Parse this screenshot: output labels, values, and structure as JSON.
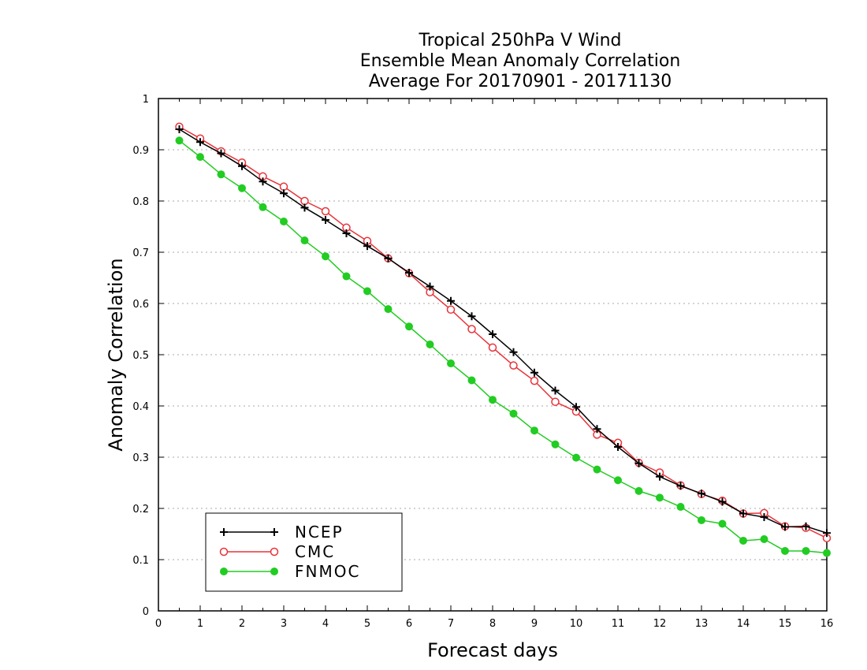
{
  "chart_data": {
    "type": "line",
    "title_lines": [
      "Tropical 250hPa V Wind",
      "Ensemble Mean Anomaly Correlation",
      "Average For 20170901 - 20171130"
    ],
    "xlabel": "Forecast days",
    "ylabel": "Anomaly Correlation",
    "xlim": [
      0,
      16
    ],
    "ylim": [
      0,
      1
    ],
    "x_ticks": [
      "0",
      "1",
      "2",
      "3",
      "4",
      "5",
      "6",
      "7",
      "8",
      "9",
      "10",
      "11",
      "12",
      "13",
      "14",
      "15",
      "16"
    ],
    "y_ticks": [
      "0",
      "0.1",
      "0.2",
      "0.3",
      "0.4",
      "0.5",
      "0.6",
      "0.7",
      "0.8",
      "0.9",
      "1"
    ],
    "grid": "horizontal dotted",
    "legend_position": "bottom-left",
    "x": [
      0.5,
      1,
      1.5,
      2,
      2.5,
      3,
      3.5,
      4,
      4.5,
      5,
      5.5,
      6,
      6.5,
      7,
      7.5,
      8,
      8.5,
      9,
      9.5,
      10,
      10.5,
      11,
      11.5,
      12,
      12.5,
      13,
      13.5,
      14,
      14.5,
      15,
      15.5,
      16
    ],
    "series": [
      {
        "name": "NCEP",
        "color": "#000000",
        "marker": "plus",
        "values": [
          0.94,
          0.915,
          0.893,
          0.868,
          0.838,
          0.815,
          0.787,
          0.763,
          0.737,
          0.712,
          0.688,
          0.66,
          0.633,
          0.605,
          0.575,
          0.54,
          0.505,
          0.465,
          0.43,
          0.398,
          0.355,
          0.32,
          0.288,
          0.262,
          0.244,
          0.229,
          0.213,
          0.19,
          0.183,
          0.164,
          0.165,
          0.152
        ]
      },
      {
        "name": "CMC",
        "color": "#e8333a",
        "marker": "open-circle",
        "values": [
          0.945,
          0.922,
          0.897,
          0.875,
          0.848,
          0.828,
          0.8,
          0.78,
          0.748,
          0.722,
          0.688,
          0.659,
          0.622,
          0.588,
          0.55,
          0.514,
          0.479,
          0.449,
          0.408,
          0.389,
          0.344,
          0.328,
          0.289,
          0.27,
          0.245,
          0.228,
          0.215,
          0.19,
          0.191,
          0.165,
          0.162,
          0.142
        ]
      },
      {
        "name": "FNMOC",
        "color": "#22cc22",
        "marker": "filled-circle",
        "values": [
          0.918,
          0.886,
          0.852,
          0.825,
          0.788,
          0.76,
          0.723,
          0.692,
          0.653,
          0.624,
          0.589,
          0.555,
          0.52,
          0.483,
          0.45,
          0.412,
          0.385,
          0.352,
          0.325,
          0.299,
          0.276,
          0.255,
          0.234,
          0.221,
          0.203,
          0.177,
          0.17,
          0.137,
          0.14,
          0.117,
          0.117,
          0.113
        ]
      }
    ]
  }
}
